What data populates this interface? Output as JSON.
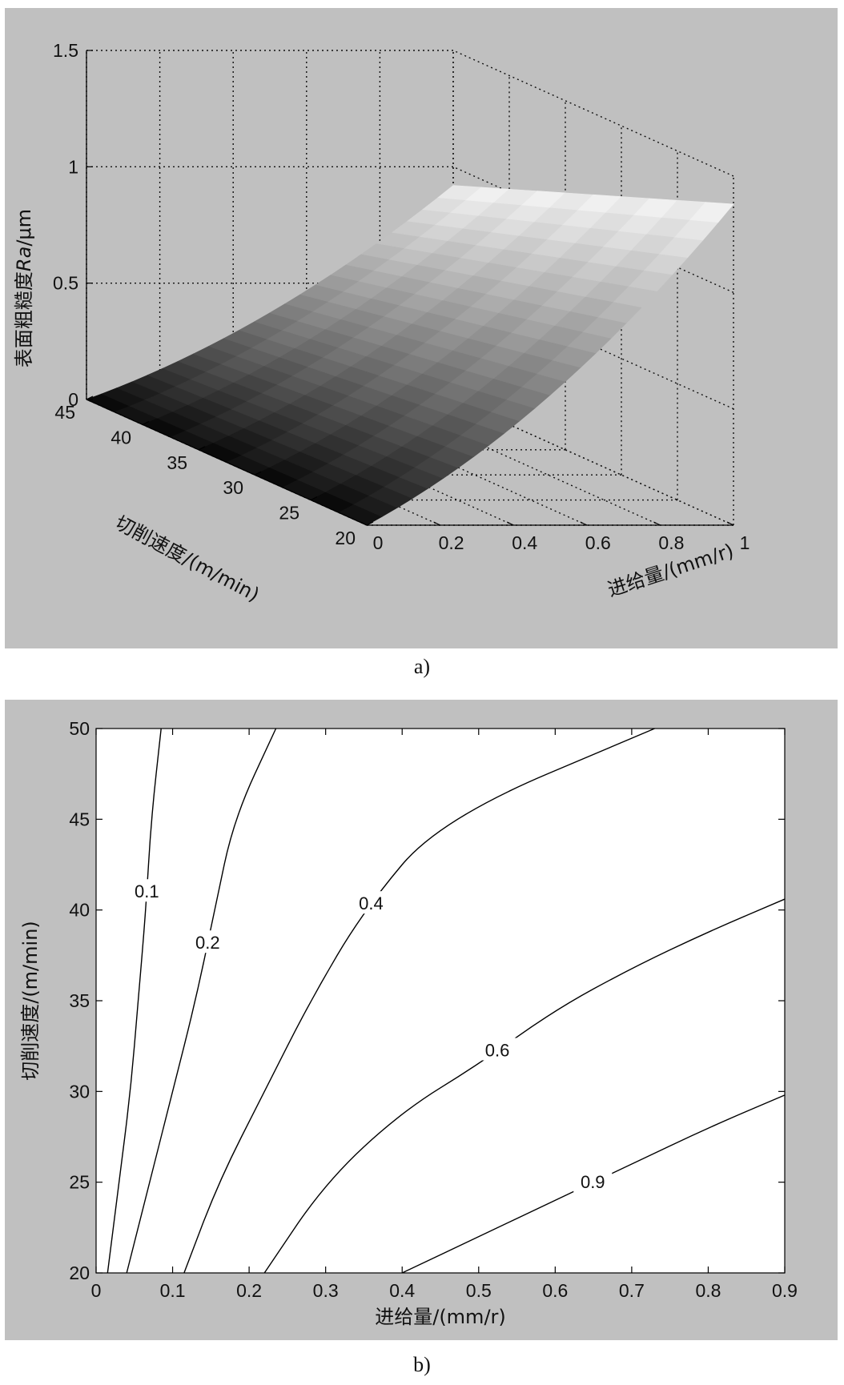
{
  "chart_data": [
    {
      "type": "surface3d",
      "panel_caption": "a)",
      "xlabel": "进给量/(mm/r)",
      "ylabel": "切削速度/(m/min)",
      "zlabel_prefix": "表面粗糙度",
      "zlabel_var": "Ra",
      "zlabel_unit": "/μm",
      "xticks": [
        "0",
        "0.2",
        "0.4",
        "0.6",
        "0.8",
        "1"
      ],
      "yticks": [
        "20",
        "25",
        "30",
        "35",
        "40",
        "45"
      ],
      "zticks": [
        "0",
        "0.5",
        "1",
        "1.5"
      ],
      "xlim": [
        0,
        1
      ],
      "ylim": [
        20,
        45
      ],
      "zlim": [
        0,
        1.5
      ],
      "grid": true,
      "colormap": "gray",
      "surface_samples": {
        "feed_mm_per_r": [
          0,
          0.1,
          0.2,
          0.3,
          0.4,
          0.5,
          0.6,
          0.7,
          0.8,
          0.9,
          1.0
        ],
        "Ra_at_speed_20": [
          0.0,
          0.09,
          0.18,
          0.3,
          0.42,
          0.55,
          0.68,
          0.82,
          0.98,
          1.18,
          1.38
        ],
        "Ra_at_speed_45": [
          0.0,
          0.06,
          0.13,
          0.2,
          0.28,
          0.36,
          0.45,
          0.55,
          0.66,
          0.78,
          0.92
        ]
      }
    },
    {
      "type": "contour",
      "panel_caption": "b)",
      "xlabel": "进给量/(mm/r)",
      "ylabel": "切削速度/(m/min)",
      "xticks": [
        "0",
        "0.1",
        "0.2",
        "0.3",
        "0.4",
        "0.5",
        "0.6",
        "0.7",
        "0.8",
        "0.9"
      ],
      "yticks": [
        "20",
        "25",
        "30",
        "35",
        "40",
        "45",
        "50"
      ],
      "xlim": [
        0,
        0.9
      ],
      "ylim": [
        20,
        50
      ],
      "series": [
        {
          "label": "0.1",
          "points": [
            [
              0.015,
              20
            ],
            [
              0.03,
              25
            ],
            [
              0.045,
              30
            ],
            [
              0.055,
              35
            ],
            [
              0.065,
              40
            ],
            [
              0.072,
              45
            ],
            [
              0.085,
              50
            ]
          ]
        },
        {
          "label": "0.2",
          "points": [
            [
              0.04,
              20
            ],
            [
              0.07,
              25
            ],
            [
              0.1,
              30
            ],
            [
              0.13,
              35
            ],
            [
              0.155,
              40
            ],
            [
              0.18,
              45
            ],
            [
              0.235,
              50
            ]
          ]
        },
        {
          "label": "0.4",
          "points": [
            [
              0.115,
              20
            ],
            [
              0.16,
              25
            ],
            [
              0.22,
              30
            ],
            [
              0.28,
              35
            ],
            [
              0.35,
              40
            ],
            [
              0.45,
              45
            ],
            [
              0.73,
              50
            ]
          ]
        },
        {
          "label": "0.6",
          "points": [
            [
              0.22,
              20
            ],
            [
              0.3,
              25
            ],
            [
              0.4,
              28.9
            ],
            [
              0.5,
              31.5
            ],
            [
              0.6,
              34.5
            ],
            [
              0.7,
              36.8
            ],
            [
              0.8,
              38.8
            ],
            [
              0.9,
              40.6
            ]
          ]
        },
        {
          "label": "0.9",
          "points": [
            [
              0.4,
              20
            ],
            [
              0.5,
              22
            ],
            [
              0.6,
              24
            ],
            [
              0.7,
              26
            ],
            [
              0.8,
              28
            ],
            [
              0.9,
              29.8
            ]
          ]
        }
      ]
    }
  ]
}
